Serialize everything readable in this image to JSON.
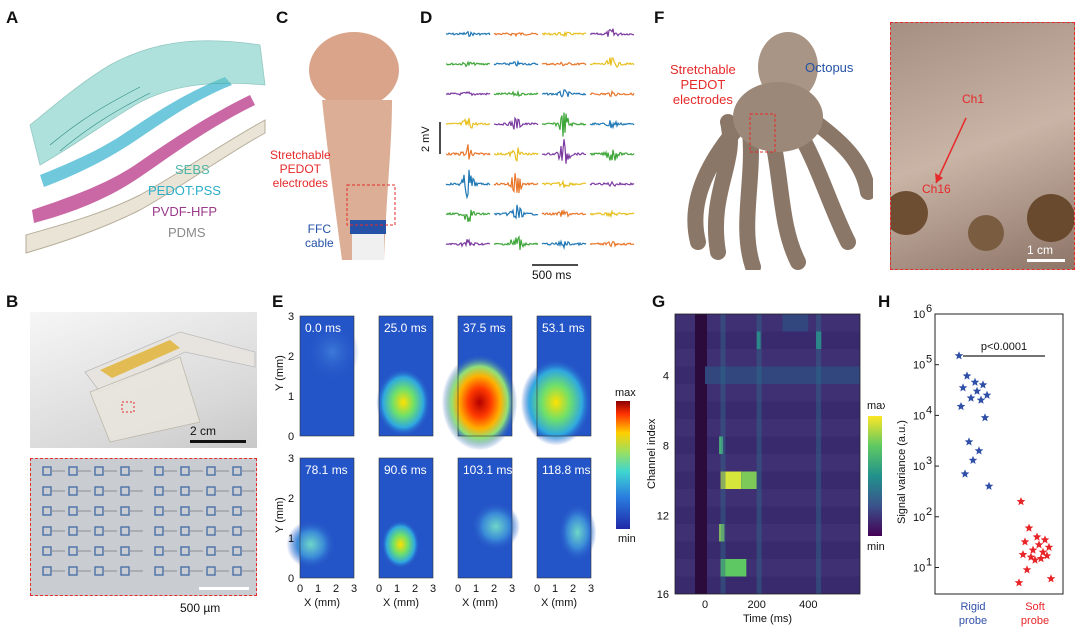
{
  "panels": {
    "A": {
      "letter": "A",
      "layers": [
        "SEBS",
        "PEDOT:PSS",
        "PVDF-HFP",
        "PDMS"
      ],
      "layer_colors": [
        "#4fb7a8",
        "#2aaec9",
        "#9b3a8a",
        "#8a8a8a"
      ]
    },
    "B": {
      "letter": "B",
      "scale_top": "2 cm",
      "scale_bottom": "500 µm"
    },
    "C": {
      "letter": "C",
      "electrode_label": [
        "Stretchable",
        "PEDOT",
        "electrodes"
      ],
      "cable_label": [
        "FFC",
        "cable"
      ]
    },
    "D": {
      "letter": "D",
      "voltage_scale": "2 mV",
      "time_scale": "500 ms"
    },
    "E": {
      "letter": "E",
      "frames_top": [
        "0.0 ms",
        "25.0 ms",
        "37.5 ms",
        "53.1 ms"
      ],
      "frames_bottom": [
        "78.1 ms",
        "90.6 ms",
        "103.1 ms",
        "118.8 ms"
      ],
      "ylabel": "Y (mm)",
      "xlabel": "X (mm)",
      "y_ticks": [
        "3",
        "2",
        "1",
        "0"
      ],
      "x_ticks": [
        "0",
        "1",
        "2",
        "3"
      ],
      "cbar_max": "max",
      "cbar_min": "min"
    },
    "F": {
      "letter": "F",
      "octopus_label": "Octopus",
      "electrode_label": [
        "Stretchable",
        "PEDOT",
        "electrodes"
      ],
      "ch1": "Ch1",
      "ch16": "Ch16",
      "scale": "1 cm"
    },
    "G": {
      "letter": "G",
      "ylabel": "Channel index",
      "xlabel": "Time (ms)",
      "y_ticks": [
        "4",
        "8",
        "12",
        "16"
      ],
      "x_ticks": [
        "0",
        "200",
        "400"
      ],
      "cbar_max": "max",
      "cbar_min": "min"
    },
    "H": {
      "letter": "H",
      "ylabel": "Signal variance (a.u.)",
      "pvalue": "p<0.0001",
      "y_ticks": [
        "10",
        "10",
        "10",
        "10",
        "10",
        "10"
      ],
      "y_exps": [
        "6",
        "5",
        "4",
        "3",
        "2",
        "1"
      ],
      "groups": [
        "Rigid",
        "Soft"
      ],
      "groups_sub": [
        "probe",
        "probe"
      ]
    }
  },
  "chart_data": {
    "type": "scatter",
    "ylabel": "Signal variance (a.u.)",
    "yscale": "log",
    "ylim": [
      3,
      1000000
    ],
    "categories": [
      "Rigid probe",
      "Soft probe"
    ],
    "series": [
      {
        "name": "Rigid probe",
        "color": "#3050a8",
        "values": [
          150000,
          60000,
          45000,
          40000,
          35000,
          30000,
          25000,
          22000,
          20000,
          15000,
          9000,
          3000,
          2000,
          1300,
          700,
          400
        ]
      },
      {
        "name": "Soft probe",
        "color": "#e8262a",
        "values": [
          200,
          60,
          40,
          35,
          32,
          28,
          25,
          22,
          20,
          18,
          17,
          16,
          15,
          14,
          9,
          6,
          5
        ]
      }
    ],
    "annotation": "p<0.0001"
  }
}
